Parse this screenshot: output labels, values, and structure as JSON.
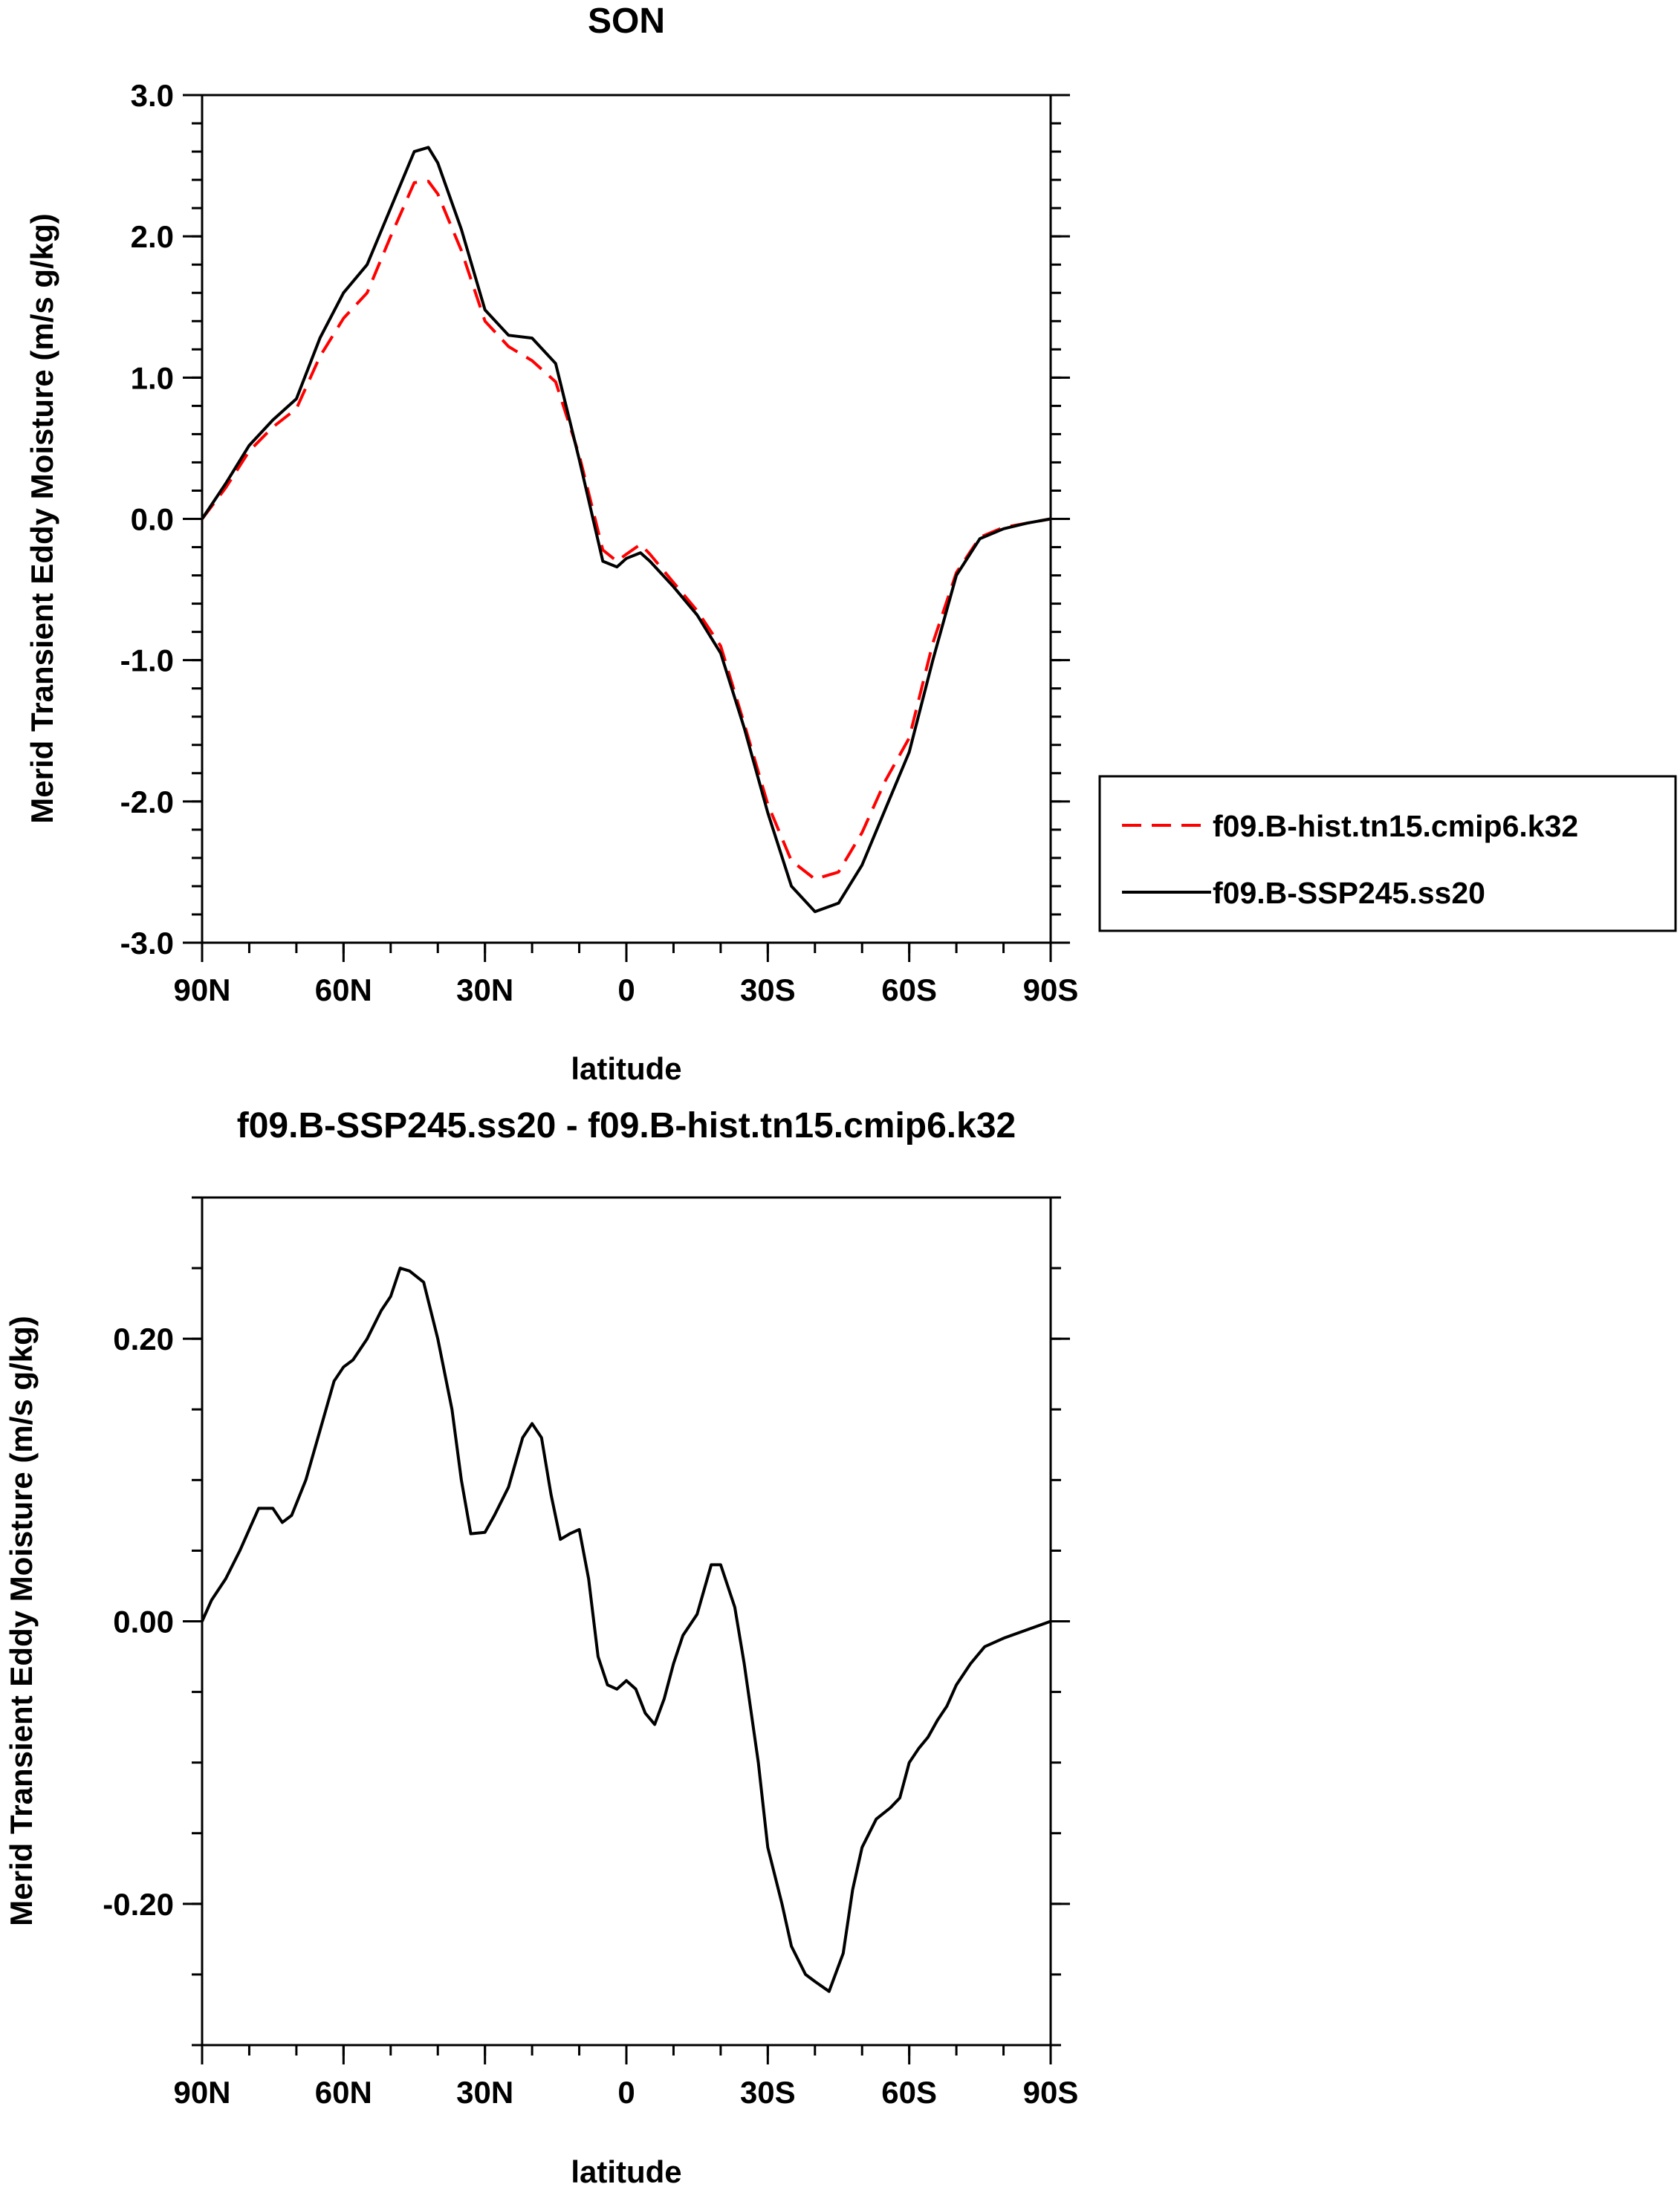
{
  "chart_data": [
    {
      "type": "line",
      "title": "SON",
      "xlabel": "latitude",
      "ylabel": "Merid Transient Eddy Moisture (m/s g/kg)",
      "x_tick_labels": [
        "90N",
        "60N",
        "30N",
        "0",
        "30S",
        "60S",
        "90S"
      ],
      "x_tick_values": [
        90,
        60,
        30,
        0,
        -30,
        -60,
        -90
      ],
      "xlim": [
        90,
        -90
      ],
      "y_tick_labels": [
        "3.0",
        "2.0",
        "1.0",
        "0.0",
        "-1.0",
        "-2.0",
        "-3.0"
      ],
      "y_tick_values": [
        3.0,
        2.0,
        1.0,
        0.0,
        -1.0,
        -2.0,
        -3.0
      ],
      "ylim": [
        -3.0,
        3.0
      ],
      "legend": [
        {
          "name": "f09.B-hist.tn15.cmip6.k32",
          "color": "#ff0000",
          "style": "dashed"
        },
        {
          "name": "f09.B-SSP245.ss20",
          "color": "#000000",
          "style": "solid"
        }
      ],
      "legend_placement": "right",
      "series": [
        {
          "name": "f09.B-hist.tn15.cmip6.k32",
          "color": "#ff0000",
          "style": "dashed",
          "x": [
            90,
            85,
            80,
            75,
            70,
            65,
            60,
            55,
            50,
            45,
            42,
            40,
            35,
            30,
            25,
            20,
            15,
            10,
            5,
            2,
            0,
            -3,
            -5,
            -10,
            -15,
            -20,
            -25,
            -30,
            -35,
            -40,
            -45,
            -50,
            -55,
            -60,
            -65,
            -70,
            -75,
            -80,
            -85,
            -90
          ],
          "y": [
            0.0,
            0.22,
            0.48,
            0.65,
            0.78,
            1.15,
            1.42,
            1.6,
            2.0,
            2.38,
            2.39,
            2.3,
            1.9,
            1.4,
            1.22,
            1.12,
            0.97,
            0.45,
            -0.22,
            -0.3,
            -0.25,
            -0.18,
            -0.25,
            -0.45,
            -0.65,
            -0.9,
            -1.45,
            -2.02,
            -2.42,
            -2.55,
            -2.5,
            -2.22,
            -1.85,
            -1.55,
            -0.88,
            -0.38,
            -0.13,
            -0.06,
            -0.03,
            0.0
          ]
        },
        {
          "name": "f09.B-SSP245.ss20",
          "color": "#000000",
          "style": "solid",
          "x": [
            90,
            85,
            80,
            75,
            70,
            65,
            60,
            55,
            50,
            45,
            42,
            40,
            35,
            30,
            25,
            20,
            15,
            10,
            5,
            2,
            0,
            -3,
            -5,
            -10,
            -15,
            -20,
            -25,
            -30,
            -35,
            -40,
            -45,
            -50,
            -55,
            -60,
            -65,
            -70,
            -75,
            -80,
            -85,
            -90
          ],
          "y": [
            0.0,
            0.25,
            0.52,
            0.7,
            0.85,
            1.28,
            1.6,
            1.8,
            2.2,
            2.6,
            2.63,
            2.52,
            2.05,
            1.48,
            1.3,
            1.28,
            1.1,
            0.42,
            -0.3,
            -0.34,
            -0.28,
            -0.24,
            -0.3,
            -0.48,
            -0.68,
            -0.95,
            -1.48,
            -2.08,
            -2.6,
            -2.78,
            -2.72,
            -2.45,
            -2.05,
            -1.65,
            -1.0,
            -0.4,
            -0.14,
            -0.07,
            -0.03,
            0.0
          ]
        }
      ]
    },
    {
      "type": "line",
      "title": "f09.B-SSP245.ss20 - f09.B-hist.tn15.cmip6.k32",
      "xlabel": "latitude",
      "ylabel": "Merid Transient Eddy Moisture (m/s g/kg)",
      "x_tick_labels": [
        "90N",
        "60N",
        "30N",
        "0",
        "30S",
        "60S",
        "90S"
      ],
      "x_tick_values": [
        90,
        60,
        30,
        0,
        -30,
        -60,
        -90
      ],
      "xlim": [
        90,
        -90
      ],
      "y_tick_labels": [
        "0.20",
        "0.00",
        "-0.20"
      ],
      "y_tick_values": [
        0.2,
        0.0,
        -0.2
      ],
      "ylim": [
        -0.3,
        0.3
      ],
      "series": [
        {
          "name": "f09.B-SSP245.ss20 - f09.B-hist.tn15.cmip6.k32",
          "color": "#000000",
          "style": "solid",
          "x": [
            90,
            88,
            85,
            82,
            80,
            78,
            75,
            73,
            71,
            68,
            65,
            62,
            60,
            58,
            55,
            52,
            50,
            48,
            46,
            43,
            40,
            37,
            35,
            33,
            30,
            28,
            25,
            22,
            20,
            18,
            16,
            14,
            12,
            10,
            8,
            6,
            4,
            2,
            0,
            -2,
            -4,
            -6,
            -8,
            -10,
            -12,
            -15,
            -18,
            -20,
            -23,
            -25,
            -28,
            -30,
            -33,
            -35,
            -38,
            -40,
            -43,
            -46,
            -48,
            -50,
            -53,
            -56,
            -58,
            -60,
            -62,
            -64,
            -66,
            -68,
            -70,
            -73,
            -76,
            -80,
            -85,
            -90
          ],
          "y": [
            0.0,
            0.015,
            0.03,
            0.05,
            0.065,
            0.08,
            0.08,
            0.07,
            0.075,
            0.1,
            0.135,
            0.17,
            0.18,
            0.185,
            0.2,
            0.22,
            0.23,
            0.25,
            0.248,
            0.24,
            0.2,
            0.15,
            0.1,
            0.062,
            0.063,
            0.075,
            0.095,
            0.13,
            0.14,
            0.13,
            0.09,
            0.058,
            0.062,
            0.065,
            0.03,
            -0.025,
            -0.045,
            -0.048,
            -0.042,
            -0.048,
            -0.065,
            -0.073,
            -0.055,
            -0.03,
            -0.01,
            0.005,
            0.04,
            0.04,
            0.01,
            -0.03,
            -0.1,
            -0.16,
            -0.2,
            -0.23,
            -0.25,
            -0.255,
            -0.262,
            -0.235,
            -0.19,
            -0.16,
            -0.14,
            -0.132,
            -0.125,
            -0.1,
            -0.09,
            -0.082,
            -0.07,
            -0.06,
            -0.045,
            -0.03,
            -0.018,
            -0.012,
            -0.006,
            0.0
          ]
        }
      ]
    }
  ]
}
